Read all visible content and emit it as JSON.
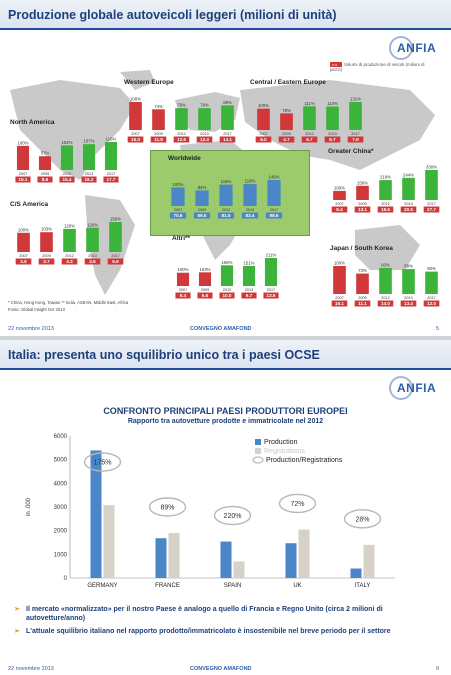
{
  "slide1": {
    "title": "Produzione globale autoveicoli leggeri (milioni di unità)",
    "logo": "ANFIA",
    "legend_label": "Volumi di produzione di veicoli (milioni di pezzi)",
    "legend_swatch": "x.x",
    "note1": "* China, Hong Kong, Taiwan ** India, ASEAN, Middle East, Africa",
    "note2": "Fonte: Global Insight Oct 2013",
    "footer_date": "22 novembre 2013",
    "footer_center": "CONVEGNO AMAFOND",
    "footer_page": "5"
  },
  "slide2": {
    "title": "Italia: presenta uno squilibrio unico tra i paesi OCSE",
    "logo": "ANFIA",
    "chart_title": "CONFRONTO PRINCIPALI PAESI PRODUTTORI EUROPEI",
    "chart_subtitle": "Rapporto tra autovetture prodotte e immatricolate nel 2012",
    "bullet1": "Il mercato «normalizzato» per il nostro Paese è analogo a quello di Francia e Regno Unito (circa 2 milioni di autovetture/anno)",
    "bullet2": "L'attuale squilibrio italiano nel rapporto prodotto/immatricolato è insostenibile nel breve periodo per il settore",
    "footer_date": "22 novembre 2013",
    "footer_center": "CONVEGNO AMAFOND",
    "footer_page": "9"
  },
  "colors": {
    "title_blue": "#1e3f7a",
    "bar_red": "#d0383a",
    "bar_green": "#3cb43c",
    "bar_blue": "#4a86c8",
    "bar_light": "#d7d2c8",
    "map_gray": "#c9c9c9",
    "worldwide_box": "#9ccb6e"
  },
  "chart_data": [
    {
      "type": "bar",
      "years": [
        "2007",
        "2009",
        "2012",
        "2013",
        "2017"
      ],
      "regions": [
        {
          "name": "North America",
          "pct": [
            "100%",
            "57%",
            "102%",
            "107%",
            "116%"
          ],
          "values": [
            "15.1",
            "8.6",
            "15.4",
            "16.2",
            "17.7"
          ]
        },
        {
          "name": "Western Europe",
          "pct": [
            "100%",
            "74%",
            "78%",
            "78%",
            "88%"
          ],
          "values": [
            "16.0",
            "11.8",
            "12.6",
            "12.4",
            "14.1"
          ]
        },
        {
          "name": "Central / Eastern Europe",
          "pct": [
            "100%",
            "78%",
            "111%",
            "110%",
            "131%"
          ],
          "values": [
            "6.0",
            "4.7",
            "6.7",
            "6.7",
            "7.9"
          ]
        },
        {
          "name": "Worldwide",
          "pct": [
            "100%",
            "84%",
            "115%",
            "118%",
            "140%"
          ],
          "values": [
            "70.6",
            "59.5",
            "81.5",
            "83.4",
            "98.6"
          ]
        },
        {
          "name": "C/S America",
          "pct": [
            "100%",
            "103%",
            "120%",
            "126%",
            "156%"
          ],
          "values": [
            "3.6",
            "3.7",
            "4.3",
            "4.5",
            "5.6"
          ]
        },
        {
          "name": "Greater China*",
          "pct": [
            "100%",
            "156%",
            "219%",
            "244%",
            "330%"
          ],
          "values": [
            "8.4",
            "13.1",
            "18.6",
            "20.5",
            "27.7"
          ]
        },
        {
          "name": "Altri**",
          "pct": [
            "100%",
            "103%",
            "156%",
            "151%",
            "211%"
          ],
          "values": [
            "6.4",
            "6.6",
            "10.0",
            "9.7",
            "13.6"
          ]
        },
        {
          "name": "Japan / South Korea",
          "pct": [
            "100%",
            "73%",
            "93%",
            "89%",
            "80%"
          ],
          "values": [
            "15.1",
            "11.1",
            "14.0",
            "13.4",
            "12.0"
          ]
        }
      ]
    },
    {
      "type": "bar",
      "title": "CONFRONTO PRINCIPALI PAESI PRODUTTORI EUROPEI",
      "subtitle": "Rapporto tra autovetture prodotte e immatricolate nel 2012",
      "ylabel": "in .000",
      "ylim": [
        0,
        6000
      ],
      "yticks": [
        "0",
        "1000",
        "2000",
        "3000",
        "4000",
        "5000",
        "6000"
      ],
      "categories": [
        "GERMANY",
        "FRANCE",
        "SPAIN",
        "UK",
        "ITALY"
      ],
      "series": [
        {
          "name": "Production",
          "values": [
            5390,
            1680,
            1540,
            1470,
            400
          ]
        },
        {
          "name": "Registrations",
          "values": [
            3080,
            1900,
            700,
            2050,
            1400
          ]
        }
      ],
      "ratio_label": "Production/Registrations",
      "ratios": [
        "175%",
        "89%",
        "220%",
        "72%",
        "28%"
      ],
      "legend": "top-right"
    }
  ]
}
